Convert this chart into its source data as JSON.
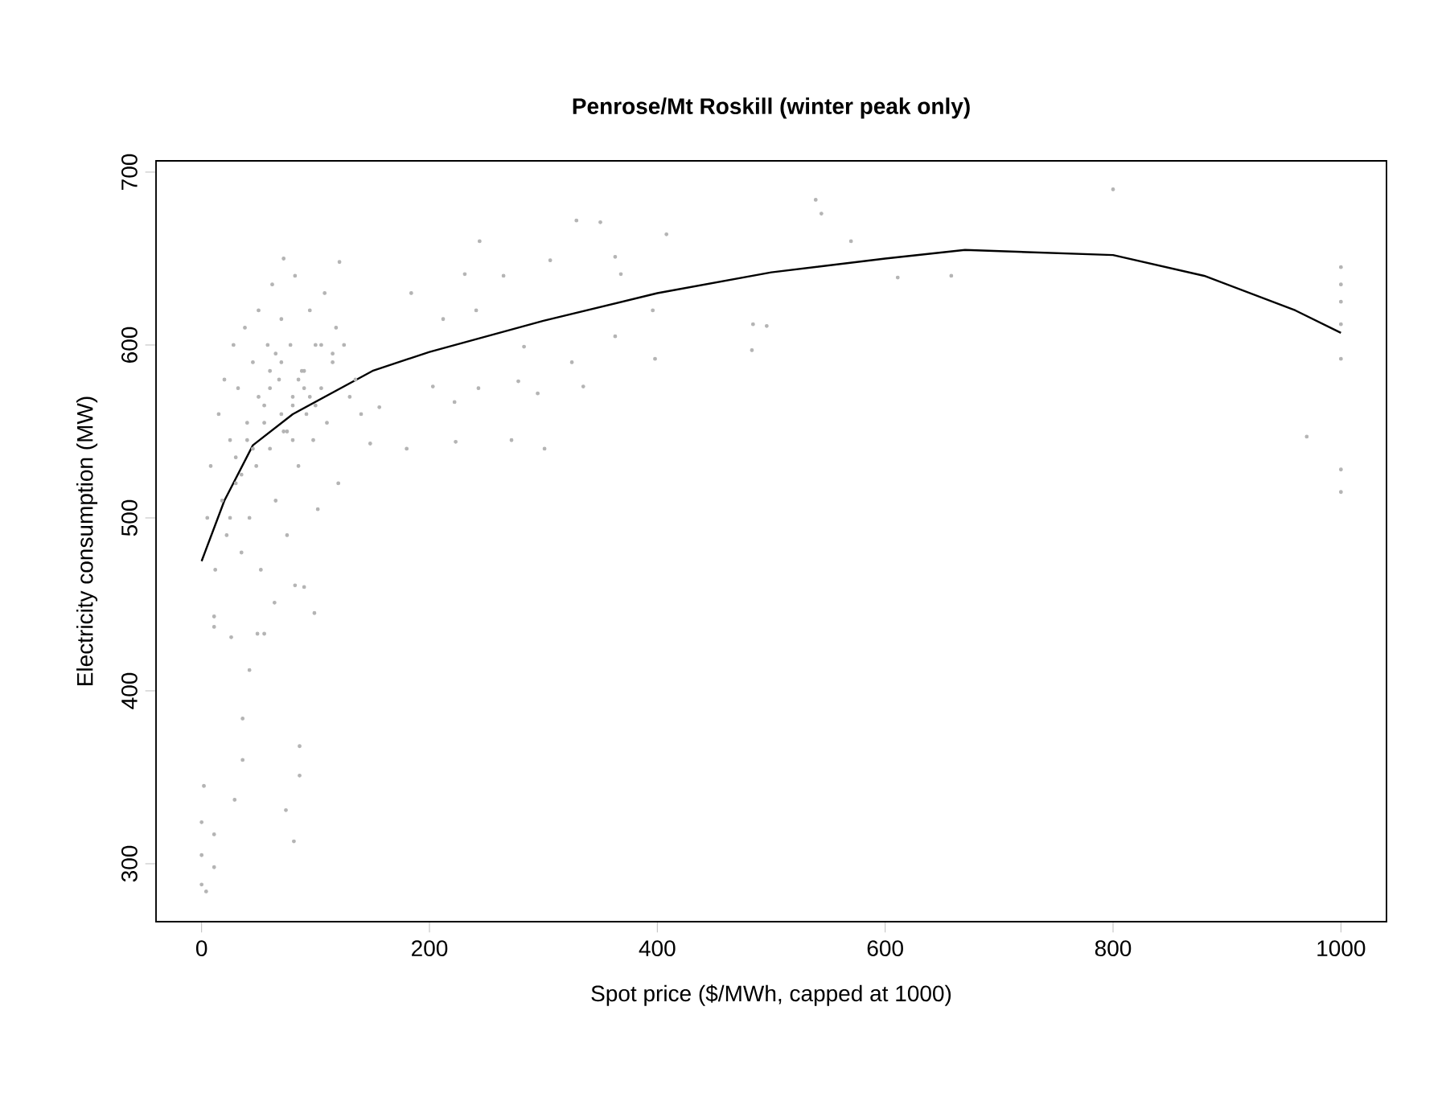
{
  "chart_data": {
    "type": "scatter",
    "title": "Penrose/Mt Roskill (winter peak only)",
    "xlabel": "Spot price ($/MWh, capped at 1000)",
    "ylabel": "Electricity consumption (MW)",
    "xlim": [
      -40,
      1040
    ],
    "ylim": [
      266.5,
      706.5
    ],
    "xticks": [
      0,
      200,
      400,
      600,
      800,
      1000
    ],
    "yticks": [
      300,
      400,
      500,
      600,
      700
    ],
    "grid": false,
    "series": [
      {
        "color": "#b4b4b4",
        "marker": "circle",
        "x": [
          2,
          0,
          0,
          0,
          4,
          11,
          11,
          29,
          36,
          36,
          42,
          26,
          49,
          55,
          86,
          86,
          74,
          81,
          99,
          82,
          11,
          11,
          64,
          800,
          539,
          544,
          570,
          611,
          658,
          484,
          496,
          483,
          970,
          1000,
          1000,
          1000,
          1000,
          1000,
          1000,
          1000,
          329,
          350,
          408,
          244,
          72,
          121,
          398,
          363,
          301,
          272,
          223,
          222,
          335,
          295,
          278,
          243,
          203,
          180,
          363,
          368,
          306,
          265,
          231,
          184,
          212,
          241,
          283,
          325,
          396,
          156,
          148,
          5,
          8,
          12,
          15,
          18,
          20,
          22,
          25,
          28,
          30,
          32,
          35,
          38,
          40,
          42,
          45,
          48,
          50,
          52,
          55,
          58,
          60,
          62,
          65,
          68,
          70,
          72,
          75,
          78,
          80,
          82,
          85,
          88,
          90,
          92,
          95,
          98,
          100,
          102,
          105,
          108,
          110,
          115,
          118,
          120,
          125,
          130,
          135,
          140,
          60,
          70,
          80,
          90,
          65,
          75,
          85,
          95,
          55,
          45,
          35,
          25,
          105,
          115,
          50,
          60,
          70,
          80,
          90,
          100,
          40,
          30
        ],
        "values": [
          345,
          324,
          305,
          288,
          284,
          317,
          298,
          337,
          360,
          384,
          412,
          431,
          433,
          433,
          368,
          351,
          331,
          313,
          445,
          461,
          443,
          437,
          451,
          690,
          684,
          676,
          660,
          639,
          640,
          612,
          611,
          597,
          547,
          592,
          645,
          635,
          625,
          612,
          528,
          515,
          672,
          671,
          664,
          660,
          650,
          648,
          592,
          605,
          540,
          545,
          544,
          567,
          576,
          572,
          579,
          575,
          576,
          540,
          651,
          641,
          649,
          640,
          641,
          630,
          615,
          620,
          599,
          590,
          620,
          564,
          543,
          500,
          530,
          470,
          560,
          510,
          580,
          490,
          545,
          600,
          520,
          575,
          480,
          610,
          555,
          500,
          590,
          530,
          620,
          470,
          565,
          600,
          540,
          635,
          510,
          580,
          615,
          550,
          490,
          600,
          570,
          640,
          530,
          585,
          460,
          560,
          620,
          545,
          600,
          505,
          575,
          630,
          555,
          590,
          610,
          520,
          600,
          570,
          580,
          560,
          575,
          590,
          565,
          585,
          595,
          550,
          580,
          570,
          555,
          540,
          525,
          500,
          600,
          595,
          570,
          585,
          560,
          545,
          575,
          565,
          545,
          535
        ]
      },
      {
        "type": "line",
        "color": "#000000",
        "marker": "none",
        "line_style": "solid",
        "x": [
          0,
          20,
          45,
          80,
          150,
          200,
          300,
          400,
          500,
          600,
          670,
          800,
          880,
          960,
          1000
        ],
        "values": [
          475,
          510,
          542,
          560,
          585,
          596,
          614,
          630,
          642,
          650,
          655,
          652,
          640,
          620,
          607
        ]
      }
    ]
  }
}
